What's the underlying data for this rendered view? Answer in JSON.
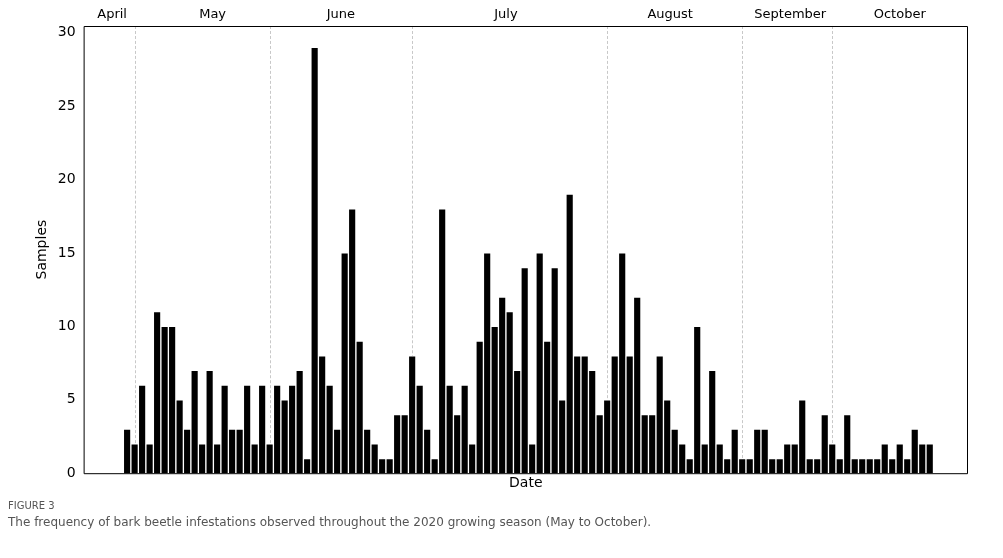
{
  "chart_data": {
    "type": "bar",
    "categories": [
      null,
      null,
      null,
      null,
      null,
      null,
      null,
      null,
      null,
      null,
      null,
      null,
      null,
      null,
      null,
      null,
      null,
      null,
      null,
      null,
      null,
      null,
      null,
      null,
      null,
      null,
      null,
      null,
      null,
      null,
      null,
      null,
      null,
      null,
      null,
      null,
      null,
      null,
      null,
      null,
      null,
      null,
      null,
      null,
      null,
      null,
      null,
      null,
      null,
      null,
      null,
      null,
      null,
      null,
      null,
      null,
      null,
      null,
      null,
      null,
      null,
      null,
      null,
      null,
      null,
      null,
      null,
      null,
      null,
      null,
      null,
      null,
      null,
      null,
      null,
      null,
      null,
      null,
      null,
      null,
      null,
      null,
      null,
      null,
      null,
      null,
      null,
      null,
      null,
      null,
      null,
      null,
      null,
      null,
      null,
      null,
      null,
      null,
      null,
      null,
      null,
      null,
      null,
      null,
      null,
      null,
      null,
      null
    ],
    "values": [
      3,
      2,
      6,
      2,
      11,
      10,
      10,
      5,
      3,
      7,
      2,
      7,
      2,
      6,
      3,
      3,
      6,
      2,
      6,
      2,
      6,
      5,
      6,
      7,
      1,
      29,
      8,
      6,
      3,
      15,
      18,
      9,
      3,
      2,
      1,
      1,
      4,
      4,
      8,
      6,
      3,
      1,
      18,
      6,
      4,
      6,
      2,
      9,
      15,
      10,
      12,
      11,
      7,
      14,
      2,
      15,
      9,
      14,
      5,
      19,
      8,
      8,
      7,
      4,
      5,
      8,
      15,
      8,
      12,
      4,
      4,
      8,
      5,
      3,
      2,
      1,
      10,
      2,
      7,
      2,
      1,
      3,
      1,
      1,
      3,
      3,
      1,
      1,
      2,
      2,
      5,
      1,
      1,
      4,
      2,
      1,
      4,
      1,
      1,
      1,
      1,
      2,
      1,
      2,
      1,
      3,
      2,
      2
    ],
    "color": "#000000",
    "xlabel": "Date",
    "ylabel": "Samples",
    "ylim": [
      0,
      30.45
    ],
    "yticks": [
      0,
      5,
      10,
      15,
      20,
      25,
      30
    ],
    "annotations": [
      "April",
      "May",
      "June",
      "July",
      "August",
      "September",
      "October",
      "FIGURE 3",
      "The frequency of bark beetle infestations observed throughout the 2020 growing season (May to October)."
    ],
    "grid": "x",
    "legend": false
  }
}
